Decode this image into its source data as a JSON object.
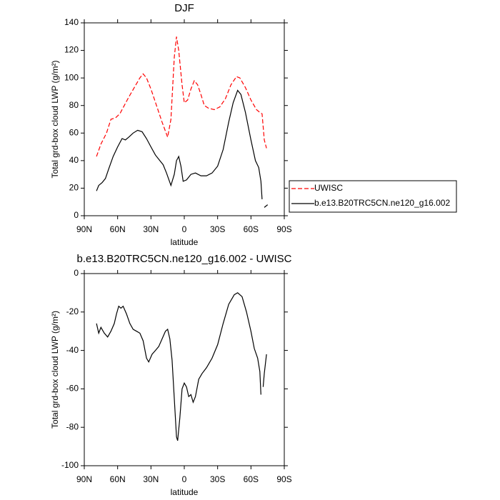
{
  "chart_data": [
    {
      "type": "line",
      "title": "DJF",
      "x_label": "latitude",
      "y_label": "Total grd-box cloud LWP (g/m²)",
      "xlim": [
        90,
        -90
      ],
      "ylim": [
        0,
        140
      ],
      "xticks": [
        {
          "value": 90,
          "label": "90N"
        },
        {
          "value": 60,
          "label": "60N"
        },
        {
          "value": 30,
          "label": "30N"
        },
        0,
        {
          "value": -30,
          "label": "30S"
        },
        {
          "value": -60,
          "label": "60S"
        },
        {
          "value": -90,
          "label": "90S"
        }
      ],
      "yticks": [
        0,
        20,
        40,
        60,
        80,
        100,
        120,
        140
      ],
      "legend": "outside-right",
      "series": [
        {
          "name": "UWISC",
          "color": "#ff0000",
          "dashed": true,
          "x": [
            79,
            75,
            70,
            66,
            62,
            58,
            54,
            50,
            45,
            40,
            37,
            34,
            30,
            25,
            20,
            15,
            12,
            9,
            7,
            5,
            2,
            0,
            -3,
            -6,
            -9,
            -12,
            -15,
            -18,
            -22,
            -27,
            -32,
            -37,
            -42,
            -47,
            -50,
            -55,
            -60,
            -65,
            -68,
            -70,
            -72,
            -74
          ],
          "values": [
            43,
            52,
            60,
            70,
            71,
            74,
            80,
            86,
            93,
            100,
            103,
            100,
            92,
            80,
            68,
            57,
            70,
            115,
            130,
            120,
            95,
            82,
            84,
            92,
            98,
            95,
            88,
            80,
            78,
            77,
            79,
            85,
            95,
            101,
            100,
            93,
            84,
            77,
            75,
            74,
            55,
            49
          ]
        },
        {
          "name": "b.e13.B20TRC5CN.ne120_g16.002",
          "color": "#000000",
          "dashed": false,
          "x": [
            79,
            77,
            74,
            71,
            68,
            64,
            60,
            56,
            53,
            50,
            46,
            42,
            38,
            34,
            30,
            26,
            22,
            19,
            16,
            12,
            9,
            7,
            5,
            3,
            1,
            -2,
            -6,
            -10,
            -15,
            -20,
            -25,
            -30,
            -35,
            -40,
            -44,
            -48,
            -51,
            -55,
            -60,
            -64,
            -67,
            -69,
            -70,
            -71,
            -72,
            -75
          ],
          "values": [
            18,
            22,
            24,
            27,
            34,
            43,
            50,
            56,
            55,
            57,
            60,
            62,
            61,
            56,
            50,
            44,
            40,
            37,
            31,
            22,
            30,
            40,
            43,
            36,
            25,
            26,
            30,
            31,
            29,
            29,
            31,
            36,
            48,
            68,
            82,
            91,
            88,
            75,
            55,
            40,
            35,
            25,
            12,
            null,
            6,
            8
          ]
        }
      ]
    },
    {
      "type": "line",
      "title": "b.e13.B20TRC5CN.ne120_g16.002 - UWISC",
      "x_label": "latitude",
      "y_label": "Total grd-box cloud LWP (g/m²)",
      "xlim": [
        90,
        -90
      ],
      "ylim": [
        -100,
        0
      ],
      "xticks": [
        {
          "value": 90,
          "label": "90N"
        },
        {
          "value": 60,
          "label": "60N"
        },
        {
          "value": 30,
          "label": "30N"
        },
        0,
        {
          "value": -30,
          "label": "30S"
        },
        {
          "value": -60,
          "label": "60S"
        },
        {
          "value": -90,
          "label": "90S"
        }
      ],
      "yticks": [
        -100,
        -80,
        -60,
        -40,
        -20,
        0
      ],
      "series": [
        {
          "color": "#000000",
          "dashed": false,
          "x": [
            79,
            77,
            75,
            72,
            69,
            66,
            63,
            61,
            59,
            57,
            55,
            52,
            49,
            46,
            43,
            40,
            37,
            34,
            32,
            29,
            26,
            23,
            20,
            17,
            15,
            13,
            11,
            9,
            7,
            6,
            4,
            2,
            0,
            -2,
            -4,
            -6,
            -8,
            -10,
            -13,
            -16,
            -20,
            -25,
            -30,
            -35,
            -40,
            -45,
            -48,
            -52,
            -56,
            -60,
            -63,
            -66,
            -68,
            -69,
            -70,
            -71,
            -72,
            -74
          ],
          "values": [
            -26,
            -31,
            -28,
            -31,
            -33,
            -30,
            -26,
            -21,
            -17,
            -18,
            -17,
            -21,
            -26,
            -29,
            -30,
            -31,
            -35,
            -44,
            -46,
            -42,
            -40,
            -38,
            -34,
            -30,
            -29,
            -34,
            -45,
            -65,
            -85,
            -87,
            -75,
            -60,
            -57,
            -59,
            -64,
            -63,
            -67,
            -64,
            -55,
            -52,
            -49,
            -44,
            -37,
            -26,
            -16,
            -11,
            -10,
            -12,
            -20,
            -30,
            -39,
            -44,
            -51,
            -63,
            null,
            -59,
            -52,
            -42
          ]
        }
      ]
    }
  ]
}
